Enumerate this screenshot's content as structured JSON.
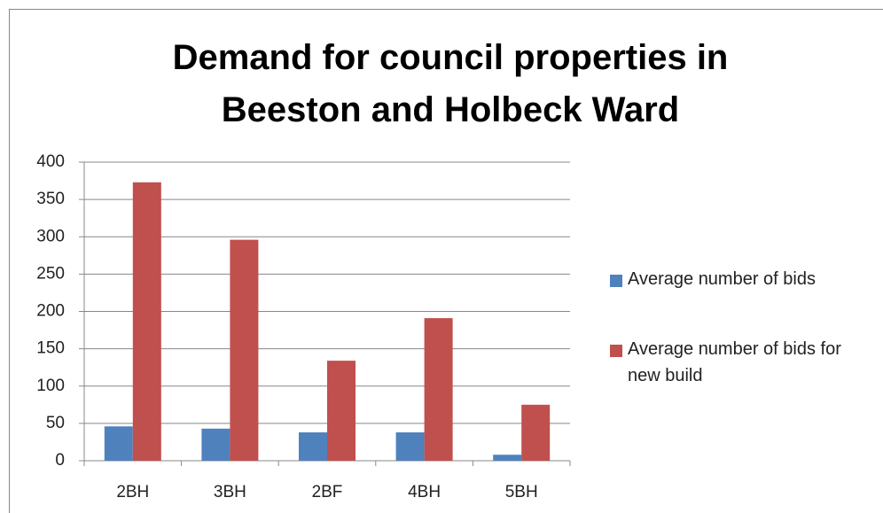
{
  "chart_data": {
    "type": "bar",
    "title": "Demand for council properties in Beeston and Holbeck Ward",
    "categories": [
      "2BH",
      "3BH",
      "2BF",
      "4BH",
      "5BH"
    ],
    "series": [
      {
        "name": "Average number of bids",
        "color": "#4f81bd",
        "values": [
          46,
          43,
          38,
          38,
          8
        ]
      },
      {
        "name": "Average number of bids for new build",
        "color": "#c0504d",
        "values": [
          373,
          296,
          134,
          191,
          75
        ]
      }
    ],
    "ylim": [
      0,
      400
    ],
    "yticks": [
      0,
      50,
      100,
      150,
      200,
      250,
      300,
      350,
      400
    ],
    "grid": true,
    "legend": "right"
  }
}
